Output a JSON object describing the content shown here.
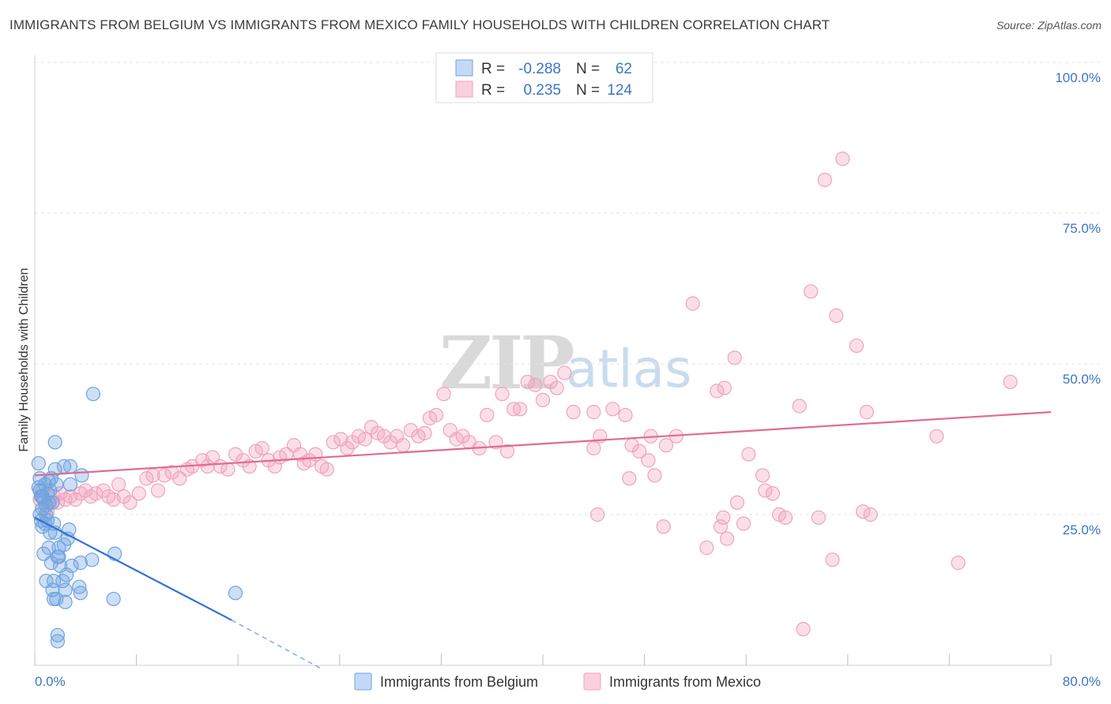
{
  "chart_data": {
    "type": "scatter",
    "title": "IMMIGRANTS FROM BELGIUM VS IMMIGRANTS FROM MEXICO FAMILY HOUSEHOLDS WITH CHILDREN CORRELATION CHART",
    "source": "Source: ZipAtlas.com",
    "xlabel": "",
    "ylabel": "Family Households with Children",
    "xlim": [
      0,
      80
    ],
    "ylim": [
      0,
      100
    ],
    "x_tick_labels": [
      "0.0%",
      "80.0%"
    ],
    "y_tick_labels": [
      "100.0%",
      "75.0%",
      "50.0%",
      "25.0%"
    ],
    "y_tick_values": [
      100,
      75,
      50,
      25
    ],
    "watermark": {
      "zip": "ZIP",
      "atlas": "atlas"
    },
    "legend": [
      {
        "r_label": "R =",
        "r_value": "-0.288",
        "n_label": "N =",
        "n_value": "62"
      },
      {
        "r_label": "R =",
        "r_value": "0.235",
        "n_label": "N =",
        "n_value": "124"
      }
    ],
    "series": [
      {
        "name": "Immigrants from Belgium",
        "color": "#6fa3e0",
        "line_color": "#2f73d4",
        "trend": {
          "x0": 0,
          "y0": 24.5,
          "x1": 15.5,
          "y1": 7.5,
          "dash_to_x": 22.5,
          "dash_to_y": -0.5
        },
        "points": [
          [
            0.3,
            29.5
          ],
          [
            0.4,
            31
          ],
          [
            0.5,
            28
          ],
          [
            0.6,
            26
          ],
          [
            0.7,
            27.5
          ],
          [
            0.8,
            30
          ],
          [
            0.9,
            25
          ],
          [
            0.5,
            24
          ],
          [
            0.6,
            23
          ],
          [
            1.0,
            28.5
          ],
          [
            1.2,
            29
          ],
          [
            1.4,
            27
          ],
          [
            0.3,
            33.5
          ],
          [
            0.4,
            29
          ],
          [
            1.1,
            30.5
          ],
          [
            1.3,
            31
          ],
          [
            1.6,
            32.5
          ],
          [
            0.8,
            23.5
          ],
          [
            1.0,
            24
          ],
          [
            1.5,
            23.5
          ],
          [
            0.7,
            18.5
          ],
          [
            1.1,
            19.5
          ],
          [
            1.3,
            17
          ],
          [
            1.6,
            22
          ],
          [
            1.8,
            18
          ],
          [
            1.9,
            19.5
          ],
          [
            2.3,
            20
          ],
          [
            2.6,
            21
          ],
          [
            2.7,
            22.5
          ],
          [
            0.9,
            14
          ],
          [
            1.5,
            14
          ],
          [
            1.4,
            12.5
          ],
          [
            2.2,
            14
          ],
          [
            2.4,
            12.5
          ],
          [
            2.5,
            15
          ],
          [
            1.5,
            11
          ],
          [
            1.7,
            11
          ],
          [
            2.4,
            10.5
          ],
          [
            3.5,
            13
          ],
          [
            3.6,
            12
          ],
          [
            3.6,
            17
          ],
          [
            4.5,
            17.5
          ],
          [
            6.3,
            18.5
          ],
          [
            3.7,
            31.5
          ],
          [
            2.8,
            30
          ],
          [
            4.6,
            45
          ],
          [
            1.6,
            37
          ],
          [
            2.3,
            33
          ],
          [
            2.8,
            33
          ],
          [
            1.7,
            30
          ],
          [
            6.2,
            11
          ],
          [
            15.8,
            12
          ],
          [
            1.8,
            5
          ],
          [
            1.8,
            4
          ],
          [
            0.6,
            28
          ],
          [
            0.9,
            26.5
          ],
          [
            1.1,
            27
          ],
          [
            0.4,
            25
          ],
          [
            1.2,
            22
          ],
          [
            2.0,
            16.5
          ],
          [
            2.9,
            16.5
          ],
          [
            1.9,
            18
          ]
        ]
      },
      {
        "name": "Immigrants from Mexico",
        "color": "#f2a2bc",
        "line_color": "#e06a95",
        "trend": {
          "x0": 0,
          "y0": 31.5,
          "x1": 80,
          "y1": 42
        },
        "points": [
          [
            0.4,
            27.5
          ],
          [
            0.6,
            29
          ],
          [
            0.8,
            26
          ],
          [
            1.0,
            25.5
          ],
          [
            1.2,
            27
          ],
          [
            1.5,
            28
          ],
          [
            1.8,
            27
          ],
          [
            2.0,
            28.5
          ],
          [
            2.4,
            27.5
          ],
          [
            2.8,
            28
          ],
          [
            3.2,
            27.5
          ],
          [
            3.6,
            28.5
          ],
          [
            4.0,
            29
          ],
          [
            4.4,
            28
          ],
          [
            4.8,
            28.5
          ],
          [
            5.4,
            29
          ],
          [
            5.8,
            28
          ],
          [
            6.2,
            27.5
          ],
          [
            6.6,
            30
          ],
          [
            7.0,
            28
          ],
          [
            7.5,
            27
          ],
          [
            8.2,
            28.5
          ],
          [
            8.8,
            31
          ],
          [
            9.3,
            31.5
          ],
          [
            9.7,
            29
          ],
          [
            10.2,
            31.5
          ],
          [
            10.8,
            32
          ],
          [
            11.4,
            31
          ],
          [
            12.0,
            32.5
          ],
          [
            12.4,
            33
          ],
          [
            13.2,
            34
          ],
          [
            13.6,
            33
          ],
          [
            14.0,
            34.5
          ],
          [
            14.6,
            33
          ],
          [
            15.2,
            32.5
          ],
          [
            15.8,
            35
          ],
          [
            16.4,
            34
          ],
          [
            16.9,
            33
          ],
          [
            17.4,
            35.5
          ],
          [
            17.9,
            36
          ],
          [
            18.4,
            34
          ],
          [
            18.9,
            33
          ],
          [
            19.3,
            34.5
          ],
          [
            19.8,
            35
          ],
          [
            20.4,
            36.5
          ],
          [
            20.9,
            35
          ],
          [
            21.2,
            33.5
          ],
          [
            21.6,
            34
          ],
          [
            22.1,
            35
          ],
          [
            22.6,
            33
          ],
          [
            23.0,
            32.5
          ],
          [
            23.5,
            37
          ],
          [
            24.1,
            37.5
          ],
          [
            24.6,
            36
          ],
          [
            25.0,
            37
          ],
          [
            25.5,
            38
          ],
          [
            26.0,
            37.5
          ],
          [
            26.5,
            39.5
          ],
          [
            27.0,
            38.5
          ],
          [
            27.5,
            38
          ],
          [
            28.0,
            37
          ],
          [
            28.5,
            38
          ],
          [
            29.0,
            36.5
          ],
          [
            29.6,
            39
          ],
          [
            30.2,
            38
          ],
          [
            30.7,
            38.5
          ],
          [
            31.1,
            41
          ],
          [
            31.6,
            41.5
          ],
          [
            32.2,
            45
          ],
          [
            32.7,
            39
          ],
          [
            33.2,
            37.5
          ],
          [
            33.7,
            38
          ],
          [
            34.2,
            37
          ],
          [
            35.0,
            36
          ],
          [
            35.6,
            41.5
          ],
          [
            36.3,
            37
          ],
          [
            36.8,
            45
          ],
          [
            37.2,
            35.5
          ],
          [
            37.7,
            42.5
          ],
          [
            38.2,
            42.5
          ],
          [
            38.8,
            47
          ],
          [
            39.4,
            46.5
          ],
          [
            40.0,
            44
          ],
          [
            40.6,
            47
          ],
          [
            41.1,
            46
          ],
          [
            41.7,
            48.5
          ],
          [
            42.4,
            42
          ],
          [
            44.0,
            42
          ],
          [
            44.5,
            38
          ],
          [
            44.0,
            36
          ],
          [
            45.5,
            42.5
          ],
          [
            46.5,
            41.5
          ],
          [
            47.0,
            36.5
          ],
          [
            47.6,
            35.5
          ],
          [
            48.3,
            34
          ],
          [
            48.8,
            31.5
          ],
          [
            49.7,
            36.5
          ],
          [
            50.5,
            38
          ],
          [
            51.8,
            60
          ],
          [
            53.7,
            45.5
          ],
          [
            54.3,
            46
          ],
          [
            55.1,
            51
          ],
          [
            56.2,
            35
          ],
          [
            57.3,
            31.5
          ],
          [
            57.5,
            29
          ],
          [
            58.1,
            28.5
          ],
          [
            58.6,
            25
          ],
          [
            59.1,
            24.5
          ],
          [
            60.2,
            43
          ],
          [
            61.1,
            62
          ],
          [
            62.2,
            80.5
          ],
          [
            63.6,
            84
          ],
          [
            63.1,
            58
          ],
          [
            64.7,
            53
          ],
          [
            65.5,
            42
          ],
          [
            65.2,
            25.5
          ],
          [
            71.0,
            38
          ],
          [
            72.7,
            17
          ],
          [
            76.8,
            47
          ],
          [
            52.9,
            19.5
          ],
          [
            54.0,
            23
          ],
          [
            54.2,
            24.5
          ],
          [
            49.5,
            23
          ],
          [
            44.3,
            25
          ],
          [
            55.3,
            27
          ],
          [
            55.8,
            23.5
          ],
          [
            46.8,
            31
          ],
          [
            48.5,
            38
          ],
          [
            54.5,
            21
          ],
          [
            61.7,
            24.5
          ],
          [
            60.5,
            6
          ],
          [
            62.8,
            17.5
          ],
          [
            65.8,
            25
          ]
        ]
      }
    ]
  },
  "bottom_legend": [
    {
      "label": "Immigrants from Belgium"
    },
    {
      "label": "Immigrants from Mexico"
    }
  ]
}
